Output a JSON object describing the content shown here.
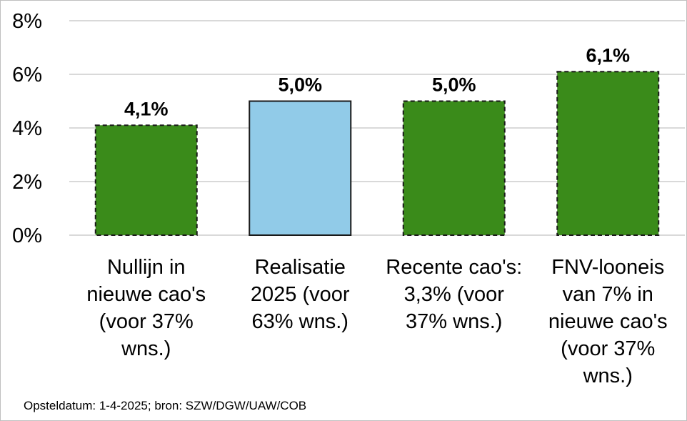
{
  "chart_data": {
    "type": "bar",
    "title": "",
    "xlabel": "",
    "ylabel": "",
    "ylim": [
      0,
      8
    ],
    "y_ticks": [
      0,
      2,
      4,
      6,
      8
    ],
    "y_tick_labels": [
      "0%",
      "2%",
      "4%",
      "6%",
      "8%"
    ],
    "grid": true,
    "categories": [
      "Nullijn in\nnieuwe cao's\n(voor 37%\nwns.)",
      "Realisatie\n2025 (voor\n63% wns.)",
      "Recente cao's:\n3,3% (voor\n37% wns.)",
      "FNV-looneis\nvan 7% in\nnieuwe cao's\n(voor 37%\nwns.)"
    ],
    "values": [
      4.1,
      5.0,
      5.0,
      6.1
    ],
    "data_labels": [
      "4,1%",
      "5,0%",
      "5,0%",
      "6,1%"
    ],
    "bar_colors": [
      "#3a8b1a",
      "#91cbe8",
      "#3a8b1a",
      "#3a8b1a"
    ],
    "bar_borders": [
      "dashed",
      "solid",
      "dashed",
      "dashed"
    ]
  },
  "footer": {
    "source": "Opsteldatum: 1-4-2025; bron: SZW/DGW/UAW/COB"
  }
}
